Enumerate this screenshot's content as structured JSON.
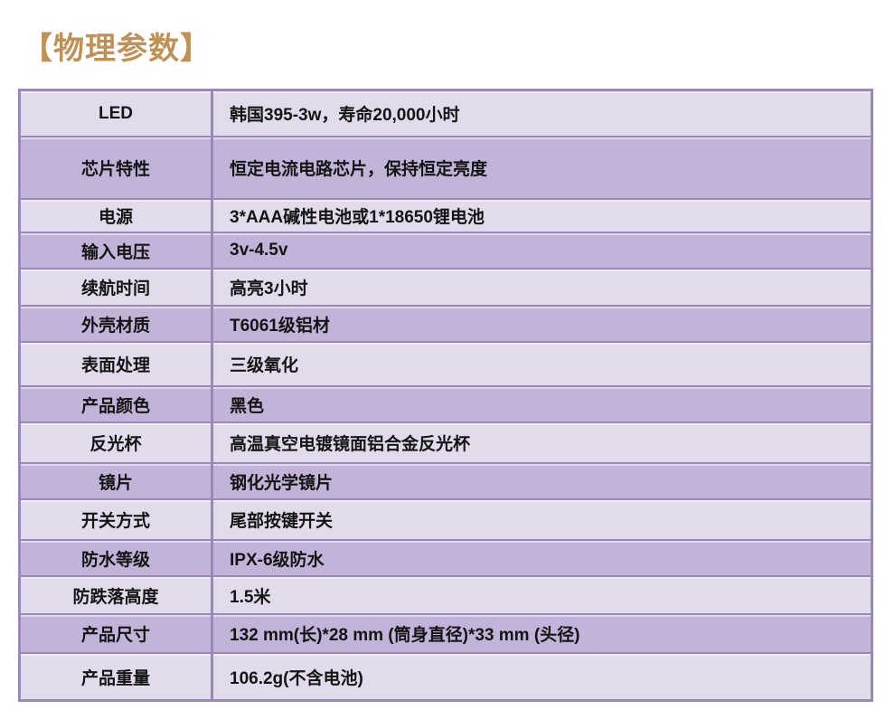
{
  "page": {
    "title": "【物理参数】"
  },
  "colors": {
    "title_text": "#bf9156",
    "row_light": "#e1dbec",
    "row_dark": "#c2b4d8",
    "border": "#9a88bd",
    "text": "#141414"
  },
  "table": {
    "rows": [
      {
        "label": "LED",
        "value": "韩国395-3w，寿命20,000小时"
      },
      {
        "label": "芯片特性",
        "value": "恒定电流电路芯片，保持恒定亮度"
      },
      {
        "label": "电源",
        "value": "3*AAA碱性电池或1*18650锂电池"
      },
      {
        "label": "输入电压",
        "value": "3v-4.5v"
      },
      {
        "label": "续航时间",
        "value": "高亮3小时"
      },
      {
        "label": "外壳材质",
        "value": "T6061级铝材"
      },
      {
        "label": "表面处理",
        "value": "三级氧化"
      },
      {
        "label": "产品颜色",
        "value": "黑色"
      },
      {
        "label": "反光杯",
        "value": "高温真空电镀镜面铝合金反光杯"
      },
      {
        "label": "镜片",
        "value": "钢化光学镜片"
      },
      {
        "label": "开关方式",
        "value": "尾部按键开关"
      },
      {
        "label": "防水等级",
        "value": "IPX-6级防水"
      },
      {
        "label": "防跌落高度",
        "value": "1.5米"
      },
      {
        "label": "产品尺寸",
        "value": "132 mm(长)*28 mm (筒身直径)*33 mm (头径)"
      },
      {
        "label": "产品重量",
        "value": "106.2g(不含电池)"
      }
    ]
  }
}
